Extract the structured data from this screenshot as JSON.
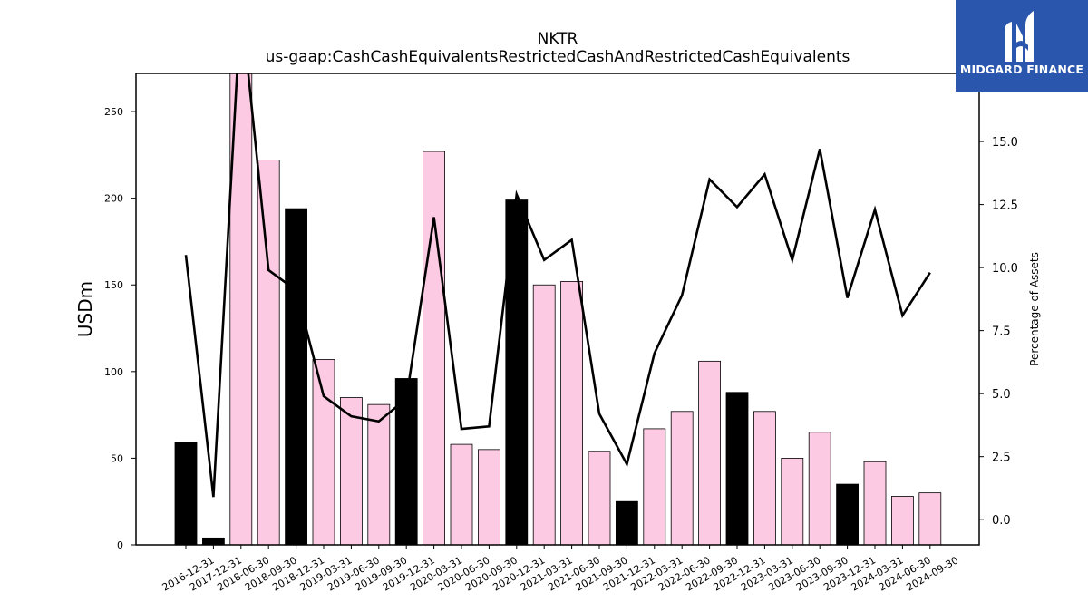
{
  "chart_data": {
    "type": "bar",
    "title": "NKTR",
    "subtitle": "us-gaap:CashCashEquivalentsRestrictedCashAndRestrictedCashEquivalents",
    "ylabel": "USDm",
    "y2label": "Percentage of Assets",
    "ylim": [
      0,
      272
    ],
    "y2lim": [
      -1.0,
      17.7
    ],
    "yticks": [
      0,
      50,
      100,
      150,
      200,
      250
    ],
    "y2ticks": [
      "0.0",
      "2.5",
      "5.0",
      "7.5",
      "10.0",
      "12.5",
      "15.0"
    ],
    "categories": [
      "2016-12-31",
      "2017-12-31",
      "2018-06-30",
      "2018-09-30",
      "2018-12-31",
      "2019-03-31",
      "2019-06-30",
      "2019-09-30",
      "2019-12-31",
      "2020-03-31",
      "2020-06-30",
      "2020-09-30",
      "2020-12-31",
      "2021-03-31",
      "2021-06-30",
      "2021-09-30",
      "2021-12-31",
      "2022-03-31",
      "2022-06-30",
      "2022-09-30",
      "2022-12-31",
      "2023-03-31",
      "2023-06-30",
      "2023-09-30",
      "2023-12-31",
      "2024-03-31",
      "2024-06-30",
      "2024-09-30"
    ],
    "series": [
      {
        "kind": "bar",
        "values": [
          59,
          4,
          290,
          222,
          194,
          107,
          85,
          81,
          96,
          227,
          58,
          55,
          199,
          150,
          152,
          54,
          25,
          67,
          77,
          106,
          88,
          77,
          50,
          65,
          35,
          48,
          28,
          30
        ],
        "colors": [
          "#000000",
          "#000000",
          "#fccbe3",
          "#fccbe3",
          "#000000",
          "#fccbe3",
          "#fccbe3",
          "#fccbe3",
          "#000000",
          "#fccbe3",
          "#fccbe3",
          "#fccbe3",
          "#000000",
          "#fccbe3",
          "#fccbe3",
          "#fccbe3",
          "#000000",
          "#fccbe3",
          "#fccbe3",
          "#fccbe3",
          "#000000",
          "#fccbe3",
          "#fccbe3",
          "#fccbe3",
          "#000000",
          "#fccbe3",
          "#fccbe3",
          "#fccbe3"
        ]
      },
      {
        "kind": "line",
        "axis": "right",
        "color": "#000000",
        "values": [
          10.5,
          0.9,
          20.5,
          9.9,
          9.1,
          4.9,
          4.1,
          3.9,
          4.8,
          12.0,
          3.6,
          3.7,
          12.9,
          10.3,
          11.1,
          4.2,
          2.2,
          6.6,
          8.9,
          13.5,
          12.4,
          13.7,
          10.3,
          14.7,
          8.8,
          12.3,
          8.1,
          9.8
        ]
      }
    ]
  },
  "logo": {
    "text": "MIDGARD FINANCE",
    "color": "#2a56ad"
  }
}
